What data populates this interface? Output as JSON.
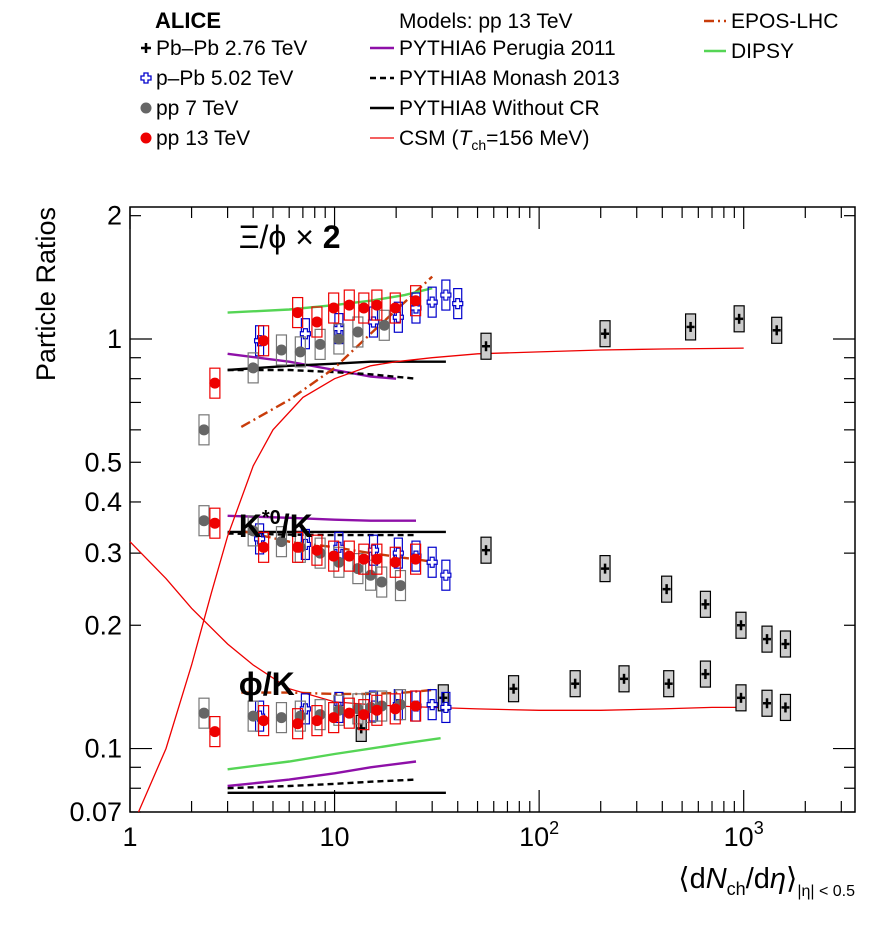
{
  "chart_data": {
    "type": "scatter",
    "ylabel": "Particle Ratios",
    "xlabel": {
      "open": "⟨d",
      "N": "N",
      "ch": "ch",
      "mid": "/d",
      "eta": "η",
      "close": "⟩",
      "sub": "|η| < 0.5"
    },
    "xscale": "log",
    "yscale": "log",
    "xlim": [
      1,
      3500
    ],
    "ylim": [
      0.07,
      2.1
    ],
    "x_ticks": [
      {
        "value": 1,
        "label": "1"
      },
      {
        "value": 10,
        "label": "10"
      },
      {
        "value": 100,
        "label": "10",
        "sup": "2"
      },
      {
        "value": 1000,
        "label": "10",
        "sup": "3"
      }
    ],
    "y_ticks": [
      {
        "value": 0.07,
        "label": "0.07"
      },
      {
        "value": 0.1,
        "label": "0.1"
      },
      {
        "value": 0.2,
        "label": "0.2"
      },
      {
        "value": 0.3,
        "label": "0.3"
      },
      {
        "value": 0.4,
        "label": "0.4"
      },
      {
        "value": 0.5,
        "label": "0.5"
      },
      {
        "value": 1,
        "label": "1"
      },
      {
        "value": 2,
        "label": "2"
      }
    ],
    "group_labels": [
      {
        "id": "xi",
        "base": "Ξ/ϕ",
        "times": " × ",
        "factor": "2",
        "x": 3.4,
        "y": 1.95
      },
      {
        "id": "kstar",
        "base": "K",
        "sup": "*0",
        "rest": "/K",
        "x": 3.4,
        "y": 0.385
      },
      {
        "id": "phi",
        "base": "ϕ/K",
        "x": 3.4,
        "y": 0.158
      }
    ],
    "legend": {
      "collaboration": "ALICE",
      "models_title": "Models: pp 13 TeV",
      "data_entries": [
        {
          "key": "pbpb",
          "label": "Pb–Pb 2.76 TeV",
          "marker": "cross",
          "color": "#000000"
        },
        {
          "key": "ppb",
          "label": "p–Pb 5.02 TeV",
          "marker": "open-cross",
          "color": "#0000cc"
        },
        {
          "key": "pp7",
          "label": "pp 7 TeV",
          "marker": "circle",
          "color": "#666666"
        },
        {
          "key": "pp13",
          "label": "pp 13 TeV",
          "marker": "circle",
          "color": "#ee0000"
        }
      ],
      "model_entries": [
        {
          "key": "perugia",
          "label": "PYTHIA6 Perugia 2011",
          "color": "#8e10a8",
          "dash": ""
        },
        {
          "key": "monash",
          "label": "PYTHIA8 Monash 2013",
          "color": "#000000",
          "dash": "6,4"
        },
        {
          "key": "nocr",
          "label": "PYTHIA8 Without CR",
          "color": "#000000",
          "dash": ""
        },
        {
          "key": "csm",
          "label_prefix": "CSM (",
          "label_T": "T",
          "label_sub": "ch",
          "label_suffix": "=156 MeV)",
          "color": "#ee0000",
          "dash": ""
        }
      ],
      "model_entries_right": [
        {
          "key": "epos",
          "label": "EPOS-LHC",
          "color": "#c83c0a",
          "dash": "10,4,2,4"
        },
        {
          "key": "dipsy",
          "label": "DIPSY",
          "color": "#55d555",
          "dash": ""
        }
      ]
    },
    "series": [
      {
        "name": "Pb–Pb 2.76 TeV",
        "key": "pbpb",
        "group": "xi",
        "x": [
          55,
          210,
          550,
          950,
          1450
        ],
        "y": [
          0.96,
          1.03,
          1.07,
          1.12,
          1.05
        ]
      },
      {
        "name": "Pb–Pb 2.76 TeV",
        "key": "pbpb",
        "group": "kstar",
        "x": [
          55,
          210,
          420,
          650,
          970,
          1300,
          1600
        ],
        "y": [
          0.305,
          0.275,
          0.245,
          0.225,
          0.2,
          0.185,
          0.18
        ]
      },
      {
        "name": "Pb–Pb 2.76 TeV",
        "key": "pbpb",
        "group": "phi",
        "x": [
          13.5,
          34,
          75,
          150,
          260,
          430,
          650,
          970,
          1300,
          1600
        ],
        "y": [
          0.112,
          0.133,
          0.14,
          0.144,
          0.148,
          0.144,
          0.152,
          0.133,
          0.129,
          0.126
        ]
      },
      {
        "name": "p–Pb 5.02 TeV",
        "key": "ppb",
        "group": "xi",
        "x": [
          4.3,
          7.2,
          10.5,
          15.5,
          20.5,
          25,
          30,
          35,
          40
        ],
        "y": [
          0.99,
          1.03,
          1.06,
          1.1,
          1.13,
          1.19,
          1.23,
          1.28,
          1.22
        ]
      },
      {
        "name": "p–Pb 5.02 TeV",
        "key": "ppb",
        "group": "kstar",
        "x": [
          4.3,
          7.2,
          10.5,
          15.5,
          20.5,
          25,
          30,
          35
        ],
        "y": [
          0.325,
          0.315,
          0.31,
          0.305,
          0.3,
          0.295,
          0.285,
          0.265
        ]
      },
      {
        "name": "p–Pb 5.02 TeV",
        "key": "ppb",
        "group": "phi",
        "x": [
          4.3,
          7.2,
          10.5,
          15.5,
          20.5,
          25,
          30,
          35
        ],
        "y": [
          0.12,
          0.125,
          0.126,
          0.127,
          0.128,
          0.127,
          0.128,
          0.126
        ]
      },
      {
        "name": "pp 7 TeV",
        "key": "pp7",
        "group": "xi",
        "x": [
          2.3,
          4.0,
          5.5,
          6.8,
          8.5,
          10.5,
          13.0,
          17.5
        ],
        "y": [
          0.6,
          0.85,
          0.94,
          0.93,
          0.97,
          1.0,
          1.04,
          1.08
        ]
      },
      {
        "name": "pp 7 TeV",
        "key": "pp7",
        "group": "kstar",
        "x": [
          2.3,
          4.0,
          5.5,
          6.8,
          8.5,
          10.5,
          13.0,
          15.0,
          17.0,
          21.0
        ],
        "y": [
          0.36,
          0.34,
          0.32,
          0.31,
          0.3,
          0.285,
          0.275,
          0.265,
          0.255,
          0.25
        ]
      },
      {
        "name": "pp 7 TeV",
        "key": "pp7",
        "group": "phi",
        "x": [
          2.3,
          4.0,
          5.5,
          6.8,
          8.5,
          10.5,
          13.0,
          15.0,
          17.0,
          21.0
        ],
        "y": [
          0.122,
          0.12,
          0.119,
          0.12,
          0.121,
          0.124,
          0.125,
          0.126,
          0.127,
          0.128
        ]
      },
      {
        "name": "pp 13 TeV",
        "key": "pp13",
        "group": "xi",
        "x": [
          2.6,
          4.5,
          6.6,
          8.2,
          9.9,
          11.8,
          13.9,
          16.1,
          19.8,
          24.9
        ],
        "y": [
          0.78,
          0.99,
          1.16,
          1.1,
          1.19,
          1.21,
          1.19,
          1.21,
          1.19,
          1.24
        ]
      },
      {
        "name": "pp 13 TeV",
        "key": "pp13",
        "group": "kstar",
        "x": [
          2.6,
          4.5,
          6.6,
          8.2,
          9.9,
          11.8,
          13.9,
          16.1,
          19.8,
          24.9
        ],
        "y": [
          0.355,
          0.31,
          0.31,
          0.305,
          0.295,
          0.295,
          0.29,
          0.29,
          0.285,
          0.29
        ]
      },
      {
        "name": "pp 13 TeV",
        "key": "pp13",
        "group": "phi",
        "x": [
          2.6,
          4.5,
          6.6,
          8.2,
          9.9,
          11.8,
          13.9,
          16.1,
          19.8,
          24.9
        ],
        "y": [
          0.11,
          0.117,
          0.115,
          0.117,
          0.119,
          0.122,
          0.121,
          0.124,
          0.125,
          0.127
        ]
      }
    ],
    "model_curves": [
      {
        "key": "perugia",
        "group": "xi",
        "x": [
          3,
          6,
          10,
          15,
          20
        ],
        "y": [
          0.92,
          0.88,
          0.84,
          0.81,
          0.8
        ]
      },
      {
        "key": "monash",
        "group": "xi",
        "x": [
          3,
          6,
          10,
          15,
          25
        ],
        "y": [
          0.84,
          0.84,
          0.83,
          0.82,
          0.8
        ]
      },
      {
        "key": "nocr",
        "group": "xi",
        "x": [
          3,
          6,
          10,
          15,
          35
        ],
        "y": [
          0.84,
          0.86,
          0.87,
          0.88,
          0.88
        ]
      },
      {
        "key": "epos",
        "group": "xi",
        "x": [
          3.5,
          6,
          10,
          15,
          22,
          30
        ],
        "y": [
          0.61,
          0.71,
          0.85,
          1.03,
          1.23,
          1.42
        ]
      },
      {
        "key": "dipsy",
        "group": "xi",
        "x": [
          3,
          6,
          10,
          15,
          22,
          30
        ],
        "y": [
          1.16,
          1.18,
          1.21,
          1.24,
          1.28,
          1.33
        ]
      },
      {
        "key": "perugia",
        "group": "kstar",
        "x": [
          3,
          6,
          10,
          15,
          25
        ],
        "y": [
          0.37,
          0.366,
          0.362,
          0.36,
          0.36
        ]
      },
      {
        "key": "monash",
        "group": "kstar",
        "x": [
          3,
          6,
          10,
          15,
          25
        ],
        "y": [
          0.335,
          0.333,
          0.332,
          0.332,
          0.332
        ]
      },
      {
        "key": "nocr",
        "group": "kstar",
        "x": [
          3,
          6,
          10,
          15,
          35
        ],
        "y": [
          0.338,
          0.338,
          0.338,
          0.338,
          0.338
        ]
      },
      {
        "key": "epos",
        "group": "kstar",
        "x": [
          3.5,
          6,
          10,
          15,
          22,
          30
        ],
        "y": [
          0.34,
          0.32,
          0.31,
          0.3,
          0.292,
          0.286
        ]
      },
      {
        "key": "perugia",
        "group": "phi",
        "x": [
          3,
          6,
          10,
          15,
          25
        ],
        "y": [
          0.081,
          0.084,
          0.087,
          0.09,
          0.093
        ]
      },
      {
        "key": "monash",
        "group": "phi",
        "x": [
          3,
          6,
          10,
          15,
          25
        ],
        "y": [
          0.08,
          0.081,
          0.082,
          0.083,
          0.084
        ]
      },
      {
        "key": "nocr",
        "group": "phi",
        "x": [
          3,
          6,
          10,
          15,
          35
        ],
        "y": [
          0.078,
          0.078,
          0.078,
          0.078,
          0.078
        ]
      },
      {
        "key": "epos",
        "group": "phi",
        "x": [
          3.5,
          6,
          10,
          15,
          22,
          30
        ],
        "y": [
          0.137,
          0.137,
          0.136,
          0.136,
          0.137,
          0.139
        ]
      },
      {
        "key": "dipsy",
        "group": "phi",
        "x": [
          3,
          6,
          10,
          15,
          22,
          33
        ],
        "y": [
          0.089,
          0.093,
          0.097,
          0.1,
          0.103,
          0.106
        ]
      },
      {
        "key": "csm",
        "group": "xi",
        "x": [
          1.1,
          1.5,
          2,
          2.5,
          3,
          4,
          5,
          7,
          10,
          15,
          20,
          30,
          50,
          100,
          200,
          400,
          700,
          1000
        ],
        "y": [
          0.07,
          0.1,
          0.16,
          0.24,
          0.33,
          0.49,
          0.6,
          0.72,
          0.8,
          0.86,
          0.88,
          0.9,
          0.92,
          0.93,
          0.94,
          0.945,
          0.948,
          0.95
        ]
      },
      {
        "key": "csm",
        "group": "phi",
        "x": [
          1,
          1.5,
          2,
          3,
          4,
          6,
          10,
          15,
          20,
          30,
          50,
          100,
          200,
          400,
          700,
          1000
        ],
        "y": [
          0.32,
          0.26,
          0.22,
          0.18,
          0.16,
          0.14,
          0.13,
          0.128,
          0.127,
          0.126,
          0.125,
          0.124,
          0.124,
          0.125,
          0.126,
          0.126
        ]
      }
    ]
  }
}
